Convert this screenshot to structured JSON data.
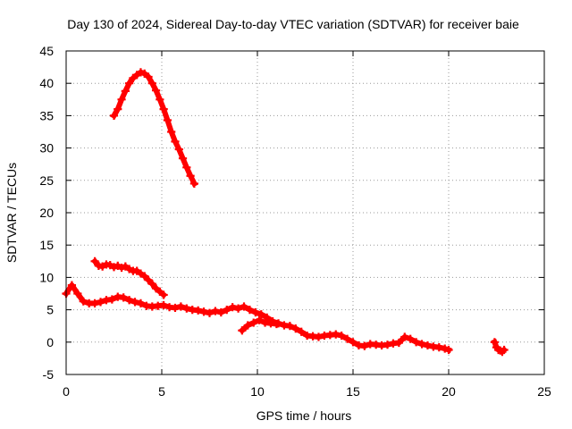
{
  "chart_data": {
    "type": "scatter",
    "title": "Day 130 of 2024, Sidereal Day-to-day VTEC variation (SDTVAR) for receiver baie",
    "xlabel": "GPS time / hours",
    "ylabel": "SDTVAR / TECUs",
    "xlim": [
      0,
      25
    ],
    "ylim": [
      -5,
      45
    ],
    "xticks": [
      0,
      5,
      10,
      15,
      20,
      25
    ],
    "yticks": [
      -5,
      0,
      5,
      10,
      15,
      20,
      25,
      30,
      35,
      40,
      45
    ],
    "xtick_labels": [
      "0",
      "5",
      "10",
      "15",
      "20",
      "25"
    ],
    "ytick_labels": [
      "-5",
      "0",
      "5",
      "10",
      "15",
      "20",
      "25",
      "30",
      "35",
      "40",
      "45"
    ],
    "grid": true,
    "marker": "+",
    "series": [
      {
        "name": "main-trace",
        "color": "#ff0000",
        "x": [
          0.0,
          0.3,
          0.6,
          0.9,
          1.2,
          1.5,
          1.8,
          2.1,
          2.4,
          2.7,
          3.0,
          3.3,
          3.6,
          3.9,
          4.2,
          4.5,
          4.8,
          5.1,
          5.4,
          5.7,
          6.0,
          6.3,
          6.6,
          6.9,
          7.2,
          7.5,
          7.8,
          8.1,
          8.4,
          8.7,
          9.0,
          9.3,
          9.6,
          9.9,
          10.2,
          10.5,
          10.8,
          11.1,
          11.4,
          11.7,
          12.0,
          12.3,
          12.6,
          12.9,
          13.2,
          13.5,
          13.8,
          14.1,
          14.4,
          14.7,
          15.0,
          15.3,
          15.6,
          15.9,
          16.2,
          16.5,
          16.8,
          17.1,
          17.4,
          17.7,
          18.0,
          18.3,
          18.6,
          18.9,
          19.2,
          19.5,
          19.8,
          20.0
        ],
        "y": [
          7.5,
          8.8,
          7.5,
          6.3,
          6.0,
          6.0,
          6.2,
          6.5,
          6.6,
          7.0,
          6.9,
          6.5,
          6.2,
          6.0,
          5.6,
          5.5,
          5.6,
          5.7,
          5.4,
          5.3,
          5.5,
          5.2,
          5.0,
          4.9,
          4.7,
          4.5,
          4.8,
          4.6,
          5.0,
          5.4,
          5.2,
          5.5,
          5.0,
          4.6,
          4.3,
          3.8,
          3.2,
          2.9,
          2.6,
          2.5,
          2.1,
          1.6,
          1.0,
          0.9,
          0.8,
          1.0,
          1.1,
          1.2,
          1.0,
          0.5,
          0.0,
          -0.5,
          -0.6,
          -0.3,
          -0.4,
          -0.5,
          -0.4,
          -0.2,
          -0.1,
          0.8,
          0.5,
          0.0,
          -0.3,
          -0.5,
          -0.7,
          -0.8,
          -1.0,
          -1.2
        ]
      },
      {
        "name": "branch-9-to-11",
        "color": "#ff0000",
        "x": [
          9.2,
          9.5,
          9.8,
          10.1,
          10.4,
          10.7,
          11.0
        ],
        "y": [
          1.8,
          2.6,
          3.0,
          3.4,
          3.0,
          2.9,
          2.8
        ]
      },
      {
        "name": "upper-arc",
        "color": "#ff0000",
        "x": [
          2.5,
          2.7,
          2.9,
          3.1,
          3.3,
          3.5,
          3.7,
          3.9,
          4.1,
          4.3,
          4.5,
          4.7,
          4.9,
          5.1,
          5.3,
          5.5,
          5.7,
          5.9,
          6.1,
          6.3,
          6.5,
          6.7
        ],
        "y": [
          35.0,
          36.0,
          37.5,
          38.8,
          40.0,
          40.8,
          41.3,
          41.7,
          41.5,
          41.0,
          40.0,
          38.9,
          37.5,
          36.0,
          34.3,
          32.5,
          31.0,
          29.8,
          28.4,
          27.0,
          25.7,
          24.5
        ]
      },
      {
        "name": "second-band",
        "color": "#ff0000",
        "x": [
          1.5,
          1.7,
          1.9,
          2.1,
          2.3,
          2.5,
          2.7,
          2.9,
          3.1,
          3.3,
          3.5,
          3.7,
          3.9,
          4.1,
          4.3,
          4.5,
          4.7,
          4.9,
          5.1
        ],
        "y": [
          12.5,
          11.8,
          11.7,
          12.0,
          11.9,
          11.6,
          11.8,
          11.5,
          11.7,
          11.3,
          11.0,
          11.0,
          10.6,
          10.2,
          9.6,
          9.0,
          8.3,
          7.8,
          7.3
        ]
      },
      {
        "name": "late-cluster",
        "color": "#ff0000",
        "x": [
          22.4,
          22.5,
          22.6,
          22.7,
          22.8,
          22.9
        ],
        "y": [
          0.0,
          -0.8,
          -1.2,
          -1.3,
          -1.5,
          -1.2
        ]
      }
    ]
  }
}
